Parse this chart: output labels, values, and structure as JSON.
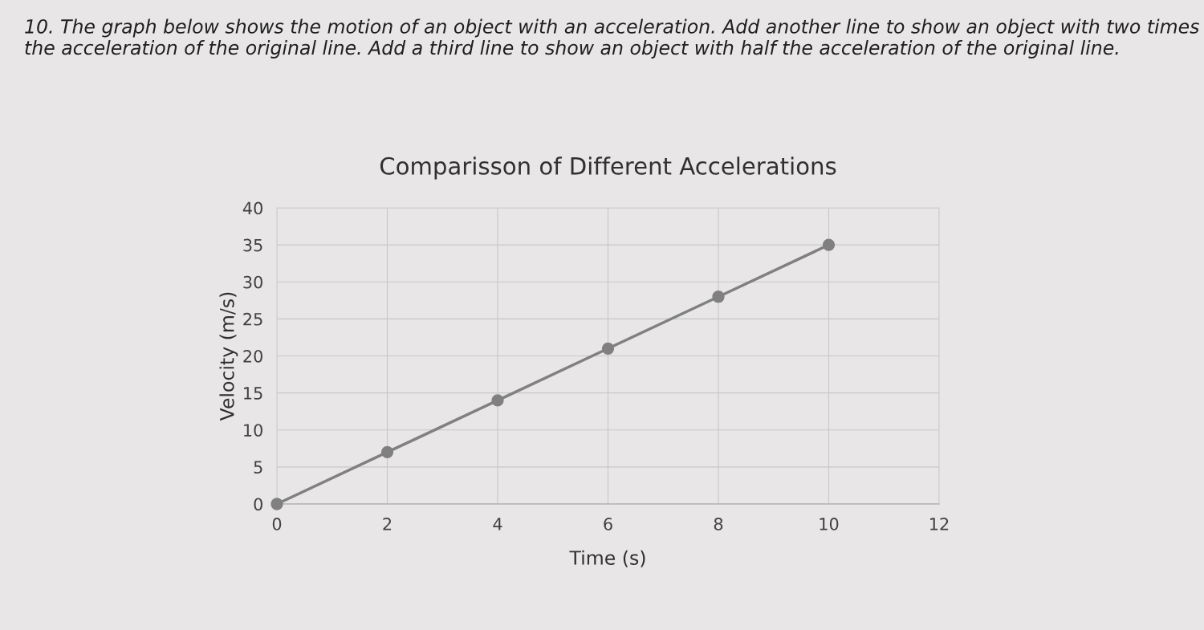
{
  "chart_data": {
    "type": "line",
    "title": "Comparisson of Different Accelerations",
    "xlabel": "Time (s)",
    "ylabel": "Velocity (m/s)",
    "annotations": [
      "10. The graph below shows the motion of an object with an acceleration. Add another line to show an object with two times the acceleration of the original line. Add a third line to show an object with half the acceleration of the original line."
    ],
    "x": [
      0,
      2,
      4,
      6,
      8,
      10
    ],
    "series": [
      {
        "color": "#808080",
        "values": [
          0,
          7,
          14,
          21,
          28,
          35
        ]
      }
    ],
    "xlim": [
      0,
      12
    ],
    "xticks": [
      0,
      2,
      4,
      6,
      8,
      10,
      12
    ],
    "ylim": [
      0,
      40
    ],
    "yticks": [
      0,
      5,
      10,
      15,
      20,
      25,
      30,
      35,
      40
    ],
    "grid": true,
    "marker": "circle",
    "line_style": "solid"
  }
}
